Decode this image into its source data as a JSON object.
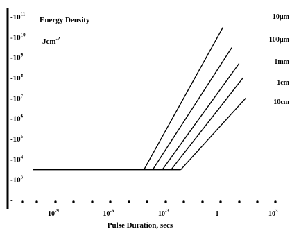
{
  "chart_data": {
    "type": "line",
    "title": "Energy Density",
    "ylabel_unit": "Jcm",
    "ylabel_unit_exponent": "-2",
    "xlabel": "Pulse Duration,  secs",
    "x_scale": "log",
    "y_scale": "log",
    "xlim": [
      1e-11,
      3000
    ],
    "ylim": [
      100.0,
      100000000000.0
    ],
    "grid": false,
    "y_ticks": [
      {
        "base": "-10",
        "exp": "11",
        "value": 100000000000.0
      },
      {
        "base": "-10",
        "exp": "10",
        "value": 10000000000.0
      },
      {
        "base": "-10",
        "exp": "9",
        "value": 1000000000.0
      },
      {
        "base": "-10",
        "exp": "8",
        "value": 100000000.0
      },
      {
        "base": "-10",
        "exp": "7",
        "value": 10000000.0
      },
      {
        "base": "-10",
        "exp": "6",
        "value": 1000000.0
      },
      {
        "base": "-10",
        "exp": "5",
        "value": 100000.0
      },
      {
        "base": "-10",
        "exp": "4",
        "value": 10000.0
      },
      {
        "base": "-10",
        "exp": "3",
        "value": 1000.0
      },
      {
        "base": "-",
        "exp": "",
        "value": 100.0
      }
    ],
    "x_ticks": [
      {
        "base": "10",
        "exp": "-9",
        "value": 1e-09
      },
      {
        "base": "10",
        "exp": "-6",
        "value": 1e-06
      },
      {
        "base": "10",
        "exp": "-3",
        "value": 0.001
      },
      {
        "base": "1",
        "exp": "",
        "value": 1
      },
      {
        "base": "10",
        "exp": "3",
        "value": 1000.0
      }
    ],
    "x_dots": [
      1e-10,
      1e-09,
      1e-08,
      1e-07,
      1e-06,
      1e-05,
      0.0001,
      0.001,
      0.01,
      0.1,
      1,
      10,
      100,
      1000
    ],
    "series": [
      {
        "name": "10µm",
        "points": [
          [
            0.0001,
            3000
          ],
          [
            2,
            30000000000.0
          ]
        ]
      },
      {
        "name": "100µm",
        "points": [
          [
            0.0003,
            3000
          ],
          [
            6,
            3000000000.0
          ]
        ]
      },
      {
        "name": "1mm",
        "points": [
          [
            0.001,
            3000
          ],
          [
            15,
            500000000.0
          ]
        ]
      },
      {
        "name": "1cm",
        "points": [
          [
            0.003,
            3000
          ],
          [
            25,
            100000000.0
          ]
        ]
      },
      {
        "name": "10cm",
        "points": [
          [
            0.01,
            3000
          ],
          [
            35,
            10000000.0
          ]
        ]
      }
    ],
    "baseline": {
      "y": 3000,
      "x": [
        1e-11,
        0.01
      ]
    }
  }
}
